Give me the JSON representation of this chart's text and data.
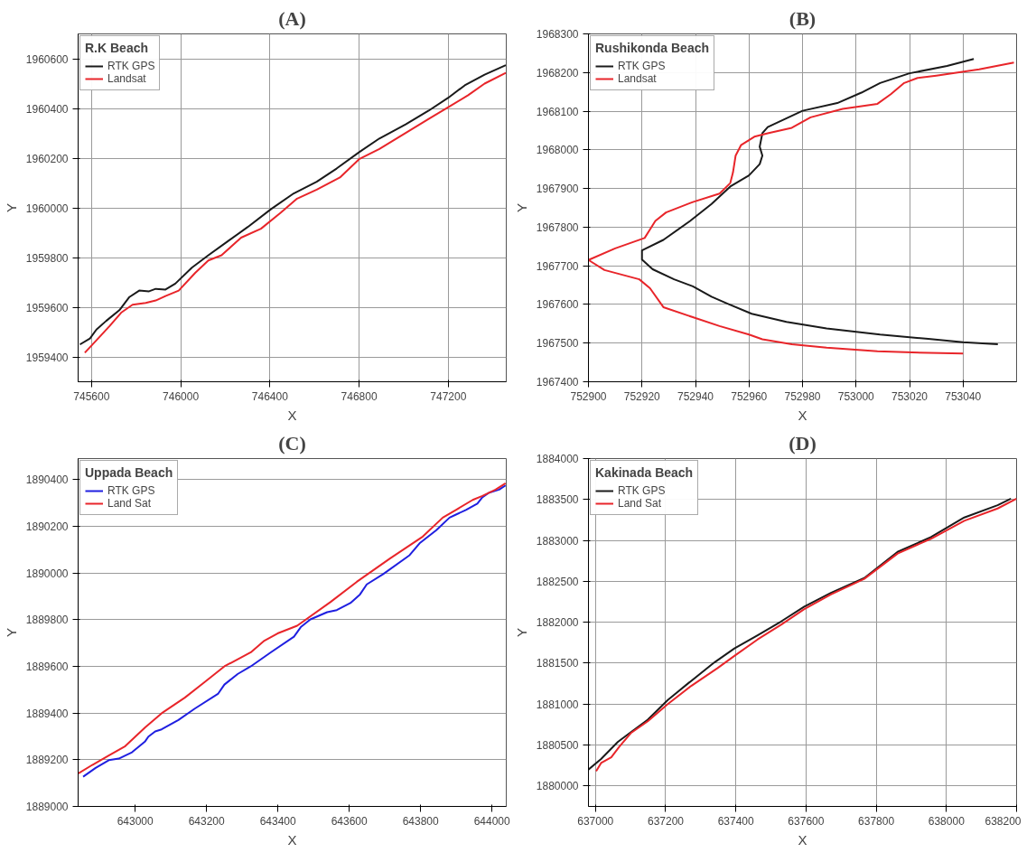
{
  "chart_data": [
    {
      "type": "line",
      "title": "(A)",
      "xlabel": "X",
      "ylabel": "Y",
      "legend_title": "R.K Beach",
      "legend": "top left",
      "grid": true,
      "xlim": [
        745540,
        747460
      ],
      "ylim": [
        1959300,
        1960700
      ],
      "xticks": [
        745600,
        746000,
        746400,
        746800,
        747200
      ],
      "yticks": [
        1959400,
        1959600,
        1959800,
        1960000,
        1960200,
        1960400,
        1960600
      ],
      "series": [
        {
          "name": "RTK GPS",
          "color": "#1a1a1a",
          "x": [
            745548,
            745593,
            745622,
            745666,
            745725,
            745770,
            745814,
            745858,
            745888,
            745932,
            745976,
            746050,
            746124,
            746212,
            746301,
            746404,
            746507,
            746610,
            746699,
            746802,
            746891,
            747009,
            747112,
            747200,
            747274,
            747363,
            747458
          ],
          "values": [
            1959450,
            1959474,
            1959510,
            1959545,
            1959588,
            1959641,
            1959667,
            1959664,
            1959674,
            1959671,
            1959695,
            1959759,
            1959809,
            1959866,
            1959923,
            1959994,
            1960058,
            1960105,
            1960158,
            1960225,
            1960279,
            1960336,
            1960391,
            1960443,
            1960493,
            1960536,
            1960574
          ]
        },
        {
          "name": "Landsat",
          "color": "#e8252a",
          "x": [
            745570,
            745622,
            745681,
            745733,
            745784,
            745843,
            745888,
            745932,
            745991,
            746065,
            746124,
            746183,
            746271,
            746360,
            746448,
            746522,
            746610,
            746714,
            746802,
            746891,
            747009,
            747112,
            747200,
            747289,
            747363,
            747458
          ],
          "values": [
            1959417,
            1959467,
            1959524,
            1959578,
            1959610,
            1959617,
            1959627,
            1959645,
            1959667,
            1959738,
            1959788,
            1959809,
            1959880,
            1959916,
            1959980,
            1960037,
            1960073,
            1960122,
            1960197,
            1960237,
            1960301,
            1960358,
            1960405,
            1960453,
            1960500,
            1960543
          ]
        }
      ]
    },
    {
      "type": "line",
      "title": "(B)",
      "xlabel": "X",
      "ylabel": "Y",
      "legend_title": "Rushikonda Beach",
      "legend": "top left",
      "grid": true,
      "xlim": [
        752900,
        753060
      ],
      "ylim": [
        1967400,
        1968300
      ],
      "xticks": [
        752900,
        752920,
        752940,
        752960,
        752980,
        753000,
        753020,
        753040
      ],
      "yticks": [
        1967400,
        1967500,
        1967600,
        1967700,
        1967800,
        1967900,
        1968000,
        1968100,
        1968200,
        1968300
      ],
      "series": [
        {
          "name": "RTK GPS",
          "color": "#1a1a1a",
          "x": [
            753044,
            753034,
            753020,
            753009,
            753002,
            752993,
            752980,
            752967,
            752965,
            752964,
            752965,
            752964,
            752960,
            752953,
            752946,
            752938,
            752928,
            752920,
            752920,
            752924,
            752932,
            752939,
            752946,
            752952,
            752961,
            752974,
            752989,
            753009,
            753027,
            753040,
            753053
          ],
          "values": [
            1968235,
            1968217,
            1968198,
            1968173,
            1968148,
            1968121,
            1968101,
            1968059,
            1968043,
            1968008,
            1967985,
            1967963,
            1967934,
            1967905,
            1967860,
            1967816,
            1967767,
            1967740,
            1967716,
            1967691,
            1967665,
            1967647,
            1967620,
            1967602,
            1967576,
            1967555,
            1967538,
            1967522,
            1967511,
            1967502,
            1967497
          ]
        },
        {
          "name": "Landsat",
          "color": "#e8252a",
          "x": [
            753059,
            753046,
            753030,
            753023,
            753018,
            753013,
            753008,
            752995,
            752983,
            752976,
            752967,
            752962,
            752957,
            752955,
            752954,
            752953,
            752949,
            752939,
            752929,
            752925,
            752921,
            752910,
            752900,
            752906,
            752919,
            752923,
            752928,
            752939,
            752949,
            752960,
            752965,
            752976,
            752989,
            753008,
            753021,
            753040
          ],
          "values": [
            1968226,
            1968208,
            1968192,
            1968186,
            1968173,
            1968144,
            1968119,
            1968106,
            1968084,
            1968057,
            1968043,
            1968034,
            1968012,
            1967985,
            1967941,
            1967914,
            1967887,
            1967865,
            1967838,
            1967816,
            1967772,
            1967745,
            1967715,
            1967689,
            1967665,
            1967642,
            1967593,
            1967567,
            1967544,
            1967522,
            1967510,
            1967497,
            1967488,
            1967479,
            1967476,
            1967473
          ]
        }
      ]
    },
    {
      "type": "line",
      "title": "(C)",
      "xlabel": "X",
      "ylabel": "Y",
      "legend_title": "Uppada Beach",
      "legend": "top left",
      "grid": "y",
      "xlim": [
        642840,
        644040
      ],
      "ylim": [
        1889000,
        1890490
      ],
      "xticks": [
        643000,
        643200,
        643400,
        643600,
        643800,
        644000
      ],
      "yticks": [
        1889000,
        1889200,
        1889400,
        1889600,
        1889800,
        1890000,
        1890200,
        1890400
      ],
      "series": [
        {
          "name": "RTK GPS",
          "color": "#1f1fe0",
          "x": [
            642854,
            642889,
            642926,
            642954,
            642991,
            643028,
            643037,
            643056,
            643074,
            643121,
            643167,
            643232,
            643250,
            643287,
            643324,
            643380,
            643445,
            643464,
            643491,
            643538,
            643565,
            643603,
            643630,
            643649,
            643695,
            643769,
            643797,
            643844,
            643881,
            643899,
            643927,
            643959,
            643973,
            643992,
            644020,
            644038
          ],
          "values": [
            1889127,
            1889165,
            1889198,
            1889205,
            1889232,
            1889279,
            1889299,
            1889321,
            1889330,
            1889370,
            1889419,
            1889482,
            1889522,
            1889567,
            1889600,
            1889660,
            1889727,
            1889768,
            1889801,
            1889832,
            1889841,
            1889871,
            1889908,
            1889951,
            1889995,
            1890076,
            1890127,
            1890183,
            1890237,
            1890250,
            1890270,
            1890297,
            1890324,
            1890344,
            1890357,
            1890375
          ]
        },
        {
          "name": "Land Sat",
          "color": "#e8252a",
          "x": [
            642841,
            642880,
            642926,
            642972,
            643028,
            643074,
            643139,
            643195,
            643250,
            643324,
            643362,
            643399,
            643454,
            643547,
            643621,
            643714,
            643806,
            643862,
            643899,
            643946,
            643973,
            644010,
            644038
          ],
          "values": [
            1889142,
            1889178,
            1889218,
            1889258,
            1889339,
            1889399,
            1889466,
            1889533,
            1889600,
            1889660,
            1889710,
            1889741,
            1889774,
            1889875,
            1889962,
            1890062,
            1890156,
            1890237,
            1890270,
            1890313,
            1890330,
            1890357,
            1890384
          ]
        }
      ]
    },
    {
      "type": "line",
      "title": "(D)",
      "xlabel": "X",
      "ylabel": "Y",
      "legend_title": "Kakinada Beach",
      "legend": "top left",
      "grid": true,
      "xlim": [
        636980,
        638200
      ],
      "ylim": [
        1879750,
        1884000
      ],
      "xticks": [
        637000,
        637200,
        637400,
        637600,
        637800,
        638000,
        638200
      ],
      "yticks": [
        1880000,
        1880500,
        1881000,
        1881500,
        1882000,
        1882500,
        1883000,
        1883500,
        1884000
      ],
      "series": [
        {
          "name": "RTK GPS",
          "color": "#1a1a1a",
          "x": [
            636980,
            637016,
            637064,
            637102,
            637149,
            637206,
            637263,
            637339,
            637396,
            637462,
            637529,
            637595,
            637671,
            637766,
            637861,
            637956,
            638051,
            638146,
            638184
          ],
          "values": [
            1880200,
            1880330,
            1880540,
            1880660,
            1880810,
            1881050,
            1881250,
            1881510,
            1881680,
            1881840,
            1882010,
            1882190,
            1882360,
            1882540,
            1882860,
            1883040,
            1883280,
            1883430,
            1883510
          ]
        },
        {
          "name": "Land Sat",
          "color": "#e8252a",
          "x": [
            637002,
            637016,
            637045,
            637068,
            637102,
            637149,
            637206,
            637272,
            637348,
            637396,
            637462,
            637529,
            637595,
            637671,
            637766,
            637861,
            637956,
            638051,
            638146,
            638200
          ],
          "values": [
            1880180,
            1880280,
            1880350,
            1880480,
            1880650,
            1880790,
            1881000,
            1881220,
            1881440,
            1881590,
            1881790,
            1881970,
            1882160,
            1882340,
            1882530,
            1882840,
            1883020,
            1883240,
            1883390,
            1883510
          ]
        }
      ]
    }
  ]
}
